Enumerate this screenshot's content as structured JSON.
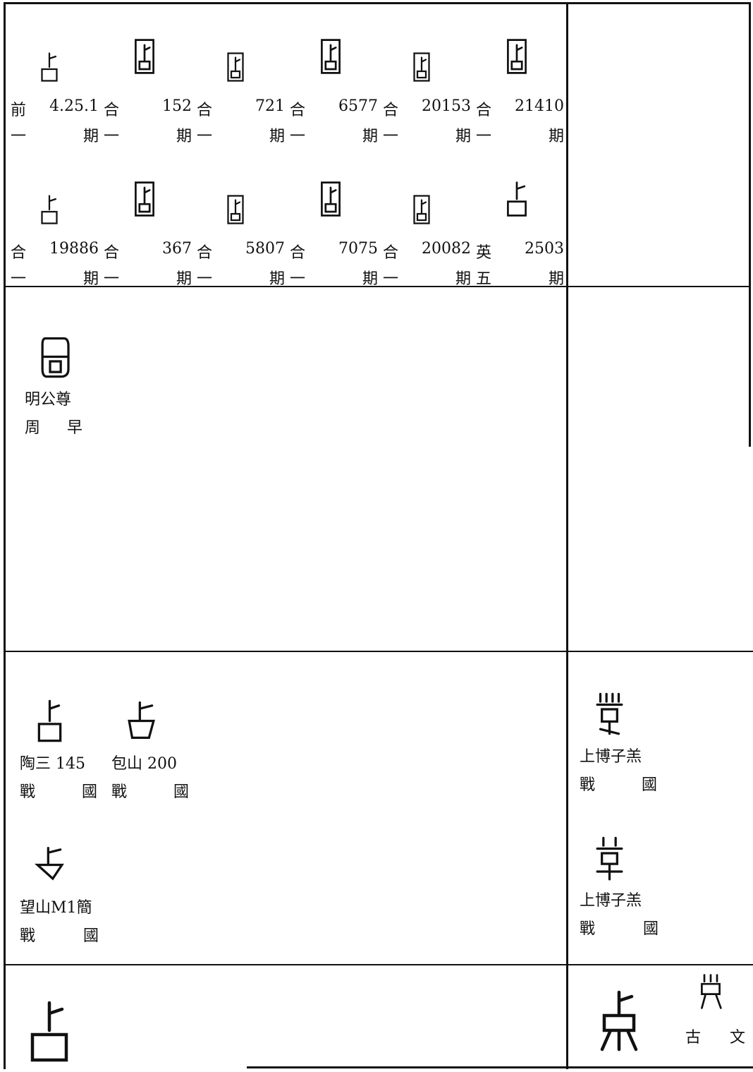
{
  "oracle_bones": [
    {
      "source": "前",
      "number": "4.25.1",
      "period": [
        "一",
        "期"
      ]
    },
    {
      "source": "合",
      "number": "152",
      "period": [
        "一",
        "期"
      ]
    },
    {
      "source": "合",
      "number": "721",
      "period": [
        "一",
        "期"
      ]
    },
    {
      "source": "合",
      "number": "6577",
      "period": [
        "一",
        "期"
      ]
    },
    {
      "source": "合",
      "number": "20153",
      "period": [
        "一",
        "期"
      ]
    },
    {
      "source": "合",
      "number": "21410",
      "period": [
        "一",
        "期"
      ]
    },
    {
      "source": "合",
      "number": "19886",
      "period": [
        "一",
        "期"
      ]
    },
    {
      "source": "合",
      "number": "367",
      "period": [
        "一",
        "期"
      ]
    },
    {
      "source": "合",
      "number": "5807",
      "period": [
        "一",
        "期"
      ]
    },
    {
      "source": "合",
      "number": "7075",
      "period": [
        "一",
        "期"
      ]
    },
    {
      "source": "合",
      "number": "20082",
      "period": [
        "一",
        "期"
      ]
    },
    {
      "source": "英",
      "number": "2503",
      "period": [
        "五",
        "期"
      ]
    }
  ],
  "bronze": [
    {
      "source": "明公尊",
      "period": [
        "周",
        "早"
      ]
    }
  ],
  "warring_states": [
    {
      "source": "陶三 145",
      "period": [
        "戰",
        "國"
      ]
    },
    {
      "source": "包山 200",
      "period": [
        "戰",
        "國"
      ]
    },
    {
      "source": "望山M1簡",
      "period": [
        "戰",
        "國"
      ]
    }
  ],
  "bamboo": [
    {
      "source": "上博子羔",
      "period": [
        "戰",
        "國"
      ]
    },
    {
      "source": "上博子羔",
      "period": [
        "戰",
        "國"
      ]
    }
  ],
  "seal": {
    "variant": [
      "古",
      "文"
    ]
  }
}
